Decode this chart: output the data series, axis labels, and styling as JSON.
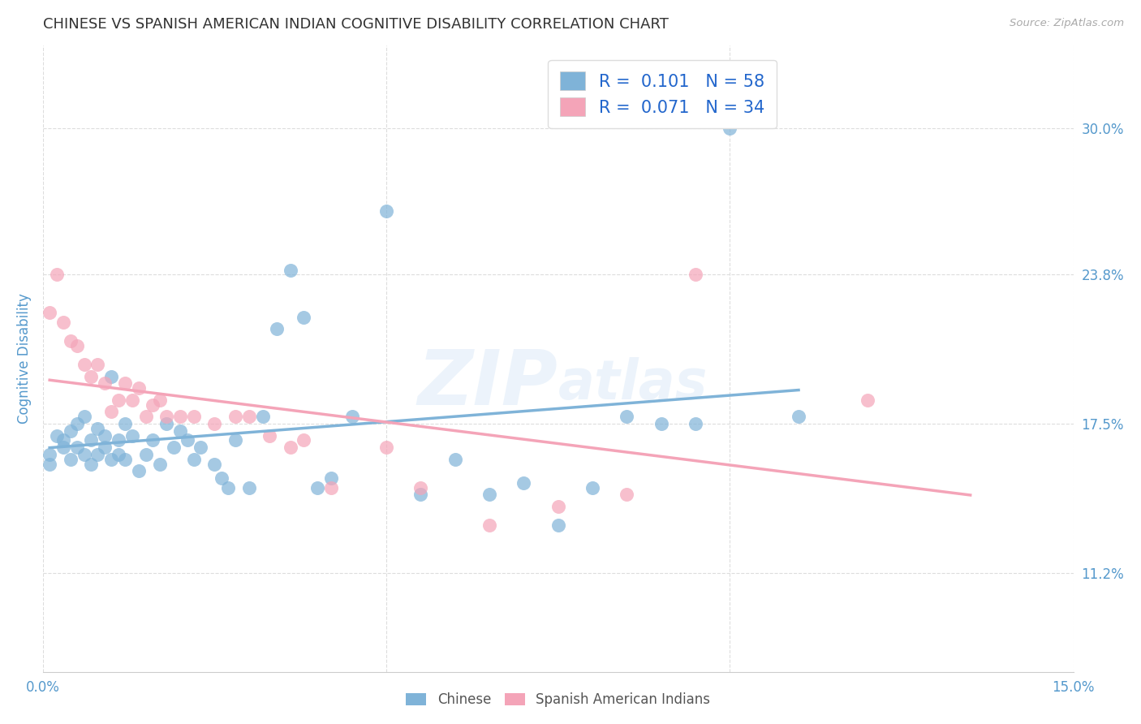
{
  "title": "CHINESE VS SPANISH AMERICAN INDIAN COGNITIVE DISABILITY CORRELATION CHART",
  "source": "Source: ZipAtlas.com",
  "ylabel": "Cognitive Disability",
  "xlim": [
    0.0,
    0.15
  ],
  "ylim": [
    0.07,
    0.335
  ],
  "xticks": [
    0.0,
    0.05,
    0.1,
    0.15
  ],
  "xtick_labels": [
    "0.0%",
    "",
    "",
    "15.0%"
  ],
  "ytick_labels_right": [
    "30.0%",
    "23.8%",
    "17.5%",
    "11.2%"
  ],
  "ytick_vals_right": [
    0.3,
    0.238,
    0.175,
    0.112
  ],
  "watermark": "ZIPAtlas",
  "chinese_color": "#7FB3D8",
  "spanish_color": "#F4A4B8",
  "chinese_R": 0.101,
  "chinese_N": 58,
  "spanish_R": 0.071,
  "spanish_N": 34,
  "chinese_x": [
    0.001,
    0.001,
    0.002,
    0.003,
    0.003,
    0.004,
    0.004,
    0.005,
    0.005,
    0.006,
    0.006,
    0.007,
    0.007,
    0.008,
    0.008,
    0.009,
    0.009,
    0.01,
    0.01,
    0.011,
    0.011,
    0.012,
    0.012,
    0.013,
    0.014,
    0.015,
    0.016,
    0.017,
    0.018,
    0.019,
    0.02,
    0.021,
    0.022,
    0.023,
    0.025,
    0.026,
    0.027,
    0.028,
    0.03,
    0.032,
    0.034,
    0.036,
    0.038,
    0.04,
    0.042,
    0.045,
    0.05,
    0.055,
    0.06,
    0.065,
    0.07,
    0.075,
    0.08,
    0.085,
    0.09,
    0.095,
    0.1,
    0.11
  ],
  "chinese_y": [
    0.162,
    0.158,
    0.17,
    0.165,
    0.168,
    0.172,
    0.16,
    0.175,
    0.165,
    0.178,
    0.162,
    0.168,
    0.158,
    0.173,
    0.162,
    0.17,
    0.165,
    0.195,
    0.16,
    0.168,
    0.162,
    0.175,
    0.16,
    0.17,
    0.155,
    0.162,
    0.168,
    0.158,
    0.175,
    0.165,
    0.172,
    0.168,
    0.16,
    0.165,
    0.158,
    0.152,
    0.148,
    0.168,
    0.148,
    0.178,
    0.215,
    0.24,
    0.22,
    0.148,
    0.152,
    0.178,
    0.265,
    0.145,
    0.16,
    0.145,
    0.15,
    0.132,
    0.148,
    0.178,
    0.175,
    0.175,
    0.3,
    0.178
  ],
  "spanish_x": [
    0.001,
    0.002,
    0.003,
    0.004,
    0.005,
    0.006,
    0.007,
    0.008,
    0.009,
    0.01,
    0.011,
    0.012,
    0.013,
    0.014,
    0.015,
    0.016,
    0.017,
    0.018,
    0.02,
    0.022,
    0.025,
    0.028,
    0.03,
    0.033,
    0.036,
    0.038,
    0.042,
    0.05,
    0.055,
    0.065,
    0.075,
    0.085,
    0.095,
    0.12
  ],
  "spanish_y": [
    0.222,
    0.238,
    0.218,
    0.21,
    0.208,
    0.2,
    0.195,
    0.2,
    0.192,
    0.18,
    0.185,
    0.192,
    0.185,
    0.19,
    0.178,
    0.183,
    0.185,
    0.178,
    0.178,
    0.178,
    0.175,
    0.178,
    0.178,
    0.17,
    0.165,
    0.168,
    0.148,
    0.165,
    0.148,
    0.132,
    0.14,
    0.145,
    0.238,
    0.185
  ],
  "background_color": "#FFFFFF",
  "grid_color": "#DDDDDD",
  "title_color": "#333333",
  "axis_label_color": "#5599CC",
  "legend_value_color": "#2266CC"
}
